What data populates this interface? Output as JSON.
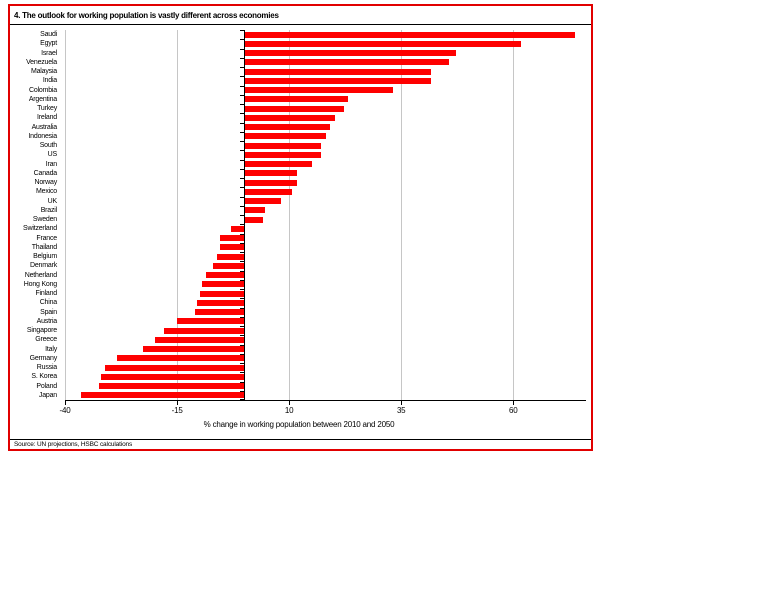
{
  "figure": {
    "title": "4. The outlook for working population is vastly different across economies",
    "source": "Source: UN projections, HSBC calculations"
  },
  "colors": {
    "bar": "#FE0000",
    "figure_border": "#E10000",
    "gridline": "#C6C6C6",
    "axis": "#000000"
  },
  "chart_data": {
    "type": "bar",
    "orientation": "horizontal",
    "title": "4. The outlook for working population is vastly different across economies",
    "xlabel": "% change in working population between 2010 and 2050",
    "categories": [
      "Saudi",
      "Egypt",
      "Israel",
      "Venezuela",
      "Malaysia",
      "India",
      "Colombia",
      "Argentina",
      "Turkey",
      "Ireland",
      "Australia",
      "Indonesia",
      "South",
      "US",
      "Iran",
      "Canada",
      "Norway",
      "Mexico",
      "UK",
      "Brazil",
      "Sweden",
      "Switzerland",
      "France",
      "Thailand",
      "Belgium",
      "Denmark",
      "Netherland",
      "Hong Kong",
      "Finland",
      "China",
      "Spain",
      "Austria",
      "Singapore",
      "Greece",
      "Italy",
      "Germany",
      "Russia",
      "S. Korea",
      "Poland",
      "Japan"
    ],
    "values": [
      73.5,
      61.5,
      47,
      45.5,
      41.5,
      41.5,
      33,
      23,
      22,
      20,
      19,
      18,
      17,
      17,
      15,
      11.5,
      11.5,
      10.5,
      8,
      4.5,
      4,
      -3,
      -5.5,
      -5.5,
      -6,
      -7,
      -8.5,
      -9.5,
      -10,
      -10.5,
      -11,
      -15,
      -18,
      -20,
      -22.5,
      -28.5,
      -31,
      -32,
      -32.5,
      -36.5
    ],
    "xticks": [
      -40,
      -15,
      10,
      35,
      60
    ],
    "xlim": [
      -40,
      76
    ],
    "grid": true,
    "legend": false
  }
}
